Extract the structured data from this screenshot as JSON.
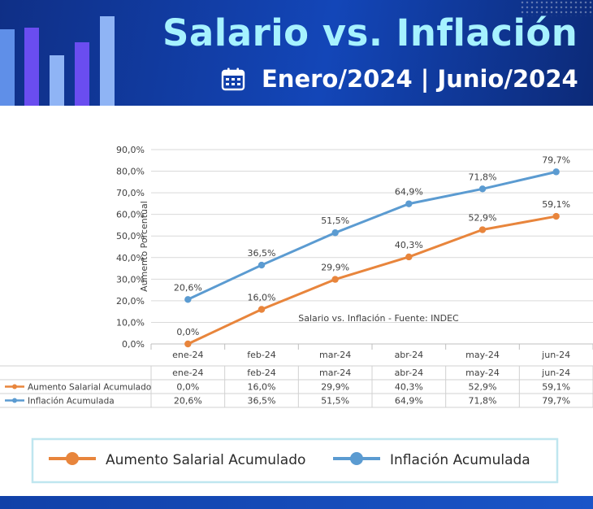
{
  "header": {
    "title": "Salario vs. Inflación",
    "subtitle": "Enero/2024 | Junio/2024",
    "icon": "calendar-icon",
    "colors": {
      "background": "#1346b8",
      "title": "#a6f2ff",
      "subtitle": "#ffffff"
    }
  },
  "chart_data": {
    "type": "line",
    "categories": [
      "ene-24",
      "feb-24",
      "mar-24",
      "abr-24",
      "may-24",
      "jun-24"
    ],
    "ylabel": "Aumento Porcentual",
    "annotation": "Salario vs. Inflación - Fuente: INDEC",
    "ylim": [
      0,
      90
    ],
    "yticks": [
      "0,0%",
      "10,0%",
      "20,0%",
      "30,0%",
      "40,0%",
      "50,0%",
      "60,0%",
      "70,0%",
      "80,0%",
      "90,0%"
    ],
    "grid": true,
    "legend": "bottom",
    "series": [
      {
        "name": "Aumento Salarial Acumulado",
        "color": "#e8853c",
        "values": [
          0.0,
          16.0,
          29.9,
          40.3,
          52.9,
          59.1
        ],
        "labels": [
          "0,0%",
          "16,0%",
          "29,9%",
          "40,3%",
          "52,9%",
          "59,1%"
        ]
      },
      {
        "name": "Inflación Acumulada",
        "color": "#5b9bd1",
        "values": [
          20.6,
          36.5,
          51.5,
          64.9,
          71.8,
          79.7
        ],
        "labels": [
          "20,6%",
          "36,5%",
          "51,5%",
          "64,9%",
          "71,8%",
          "79,7%"
        ]
      }
    ]
  }
}
